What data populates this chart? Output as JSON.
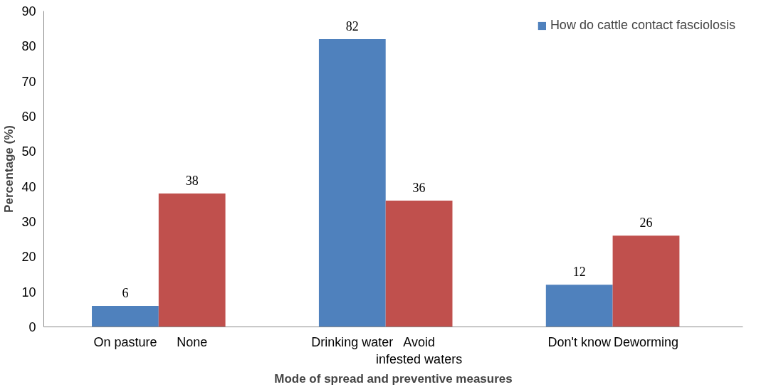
{
  "chart_data": {
    "type": "bar",
    "xlabel": "Mode of spread and preventive measures",
    "ylabel": "Percentage (%)",
    "categories": [
      "On pasture",
      "None",
      "Drinking water",
      "Avoid infested waters",
      "Don't know",
      "Deworming"
    ],
    "series": [
      {
        "name": "How do cattle contact fasciolosis",
        "color": "#4f81bd",
        "values": [
          6,
          null,
          82,
          null,
          12,
          null
        ]
      },
      {
        "color": "#c0504d",
        "values": [
          null,
          38,
          null,
          36,
          null,
          26
        ]
      }
    ],
    "ylim": [
      0,
      90
    ],
    "yticks": [
      0,
      10,
      20,
      30,
      40,
      50,
      60,
      70,
      80,
      90
    ],
    "data_labels": true,
    "grid": false,
    "legend": "top right"
  }
}
